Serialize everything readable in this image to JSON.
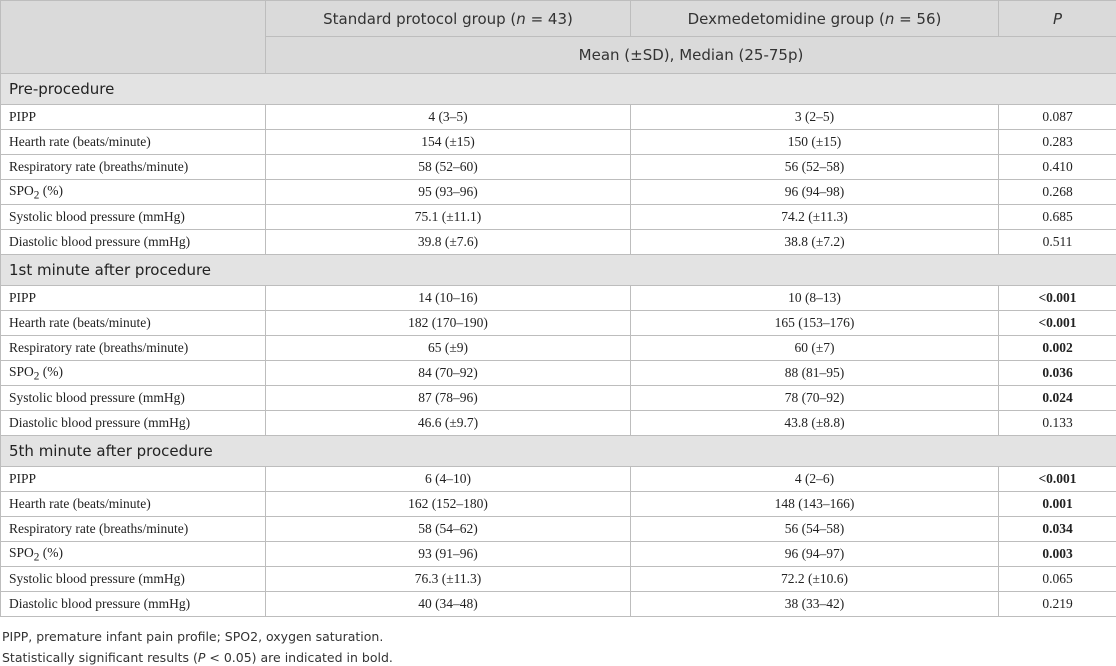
{
  "table": {
    "header": {
      "col1": [
        "Standard protocol group (",
        "n",
        " = 43)"
      ],
      "col2": [
        "Dexmedetomidine group (",
        "n",
        " = 56)"
      ],
      "col3": "P",
      "subheader": "Mean (±SD), Median (25-75p)"
    },
    "sections": [
      {
        "title": "Pre-procedure",
        "rows": [
          {
            "label": "PIPP",
            "standard": "4 (3–5)",
            "dex": "3 (2–5)",
            "p": "0.087"
          },
          {
            "label": "Hearth rate (beats/minute)",
            "standard": "154 (±15)",
            "dex": "150 (±15)",
            "p": "0.283"
          },
          {
            "label": "Respiratory rate (breaths/minute)",
            "standard": "58 (52–60)",
            "dex": "56 (52–58)",
            "p": "0.410"
          },
          {
            "label": [
              "SPO",
              "2",
              " (%)"
            ],
            "standard": "95 (93–96)",
            "dex": "96 (94–98)",
            "p": "0.268"
          },
          {
            "label": "Systolic blood pressure (mmHg)",
            "standard": "75.1 (±11.1)",
            "dex": "74.2 (±11.3)",
            "p": "0.685"
          },
          {
            "label": "Diastolic blood pressure (mmHg)",
            "standard": "39.8 (±7.6)",
            "dex": "38.8 (±7.2)",
            "p": "0.511"
          }
        ]
      },
      {
        "title": "1st minute after procedure",
        "rows": [
          {
            "label": "PIPP",
            "standard": "14 (10–16)",
            "dex": "10 (8–13)",
            "p": "<0.001",
            "bold": true
          },
          {
            "label": "Hearth rate (beats/minute)",
            "standard": "182 (170–190)",
            "dex": "165 (153–176)",
            "p": "<0.001",
            "bold": true
          },
          {
            "label": "Respiratory rate (breaths/minute)",
            "standard": "65 (±9)",
            "dex": "60 (±7)",
            "p": "0.002",
            "bold": true
          },
          {
            "label": [
              "SPO",
              "2",
              " (%)"
            ],
            "standard": "84 (70–92)",
            "dex": "88 (81–95)",
            "p": "0.036",
            "bold": true
          },
          {
            "label": "Systolic blood pressure (mmHg)",
            "standard": "87 (78–96)",
            "dex": "78 (70–92)",
            "p": "0.024",
            "bold": true
          },
          {
            "label": "Diastolic blood pressure (mmHg)",
            "standard": "46.6 (±9.7)",
            "dex": "43.8 (±8.8)",
            "p": "0.133"
          }
        ]
      },
      {
        "title": "5th minute after procedure",
        "rows": [
          {
            "label": "PIPP",
            "standard": "6 (4–10)",
            "dex": "4 (2–6)",
            "p": "<0.001",
            "bold": true
          },
          {
            "label": "Hearth rate (beats/minute)",
            "standard": "162 (152–180)",
            "dex": "148 (143–166)",
            "p": "0.001",
            "bold": true
          },
          {
            "label": "Respiratory rate (breaths/minute)",
            "standard": "58 (54–62)",
            "dex": "56 (54–58)",
            "p": "0.034",
            "bold": true
          },
          {
            "label": [
              "SPO",
              "2",
              " (%)"
            ],
            "standard": "93 (91–96)",
            "dex": "96 (94–97)",
            "p": "0.003",
            "bold": true
          },
          {
            "label": "Systolic blood pressure (mmHg)",
            "standard": "76.3 (±11.3)",
            "dex": "72.2 (±10.6)",
            "p": "0.065"
          },
          {
            "label": "Diastolic blood pressure (mmHg)",
            "standard": "40 (34–48)",
            "dex": "38 (33–42)",
            "p": "0.219"
          }
        ]
      }
    ],
    "footnotes": [
      "PIPP, premature infant pain profile; SPO2, oxygen saturation.",
      [
        "Statistically significant results (",
        "P",
        " < 0.05) are indicated in bold."
      ]
    ]
  }
}
